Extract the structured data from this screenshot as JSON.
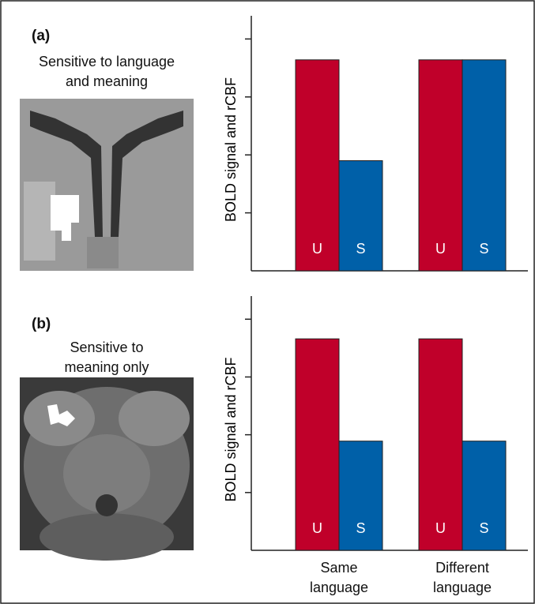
{
  "chart_data": [
    {
      "type": "bar",
      "panel_label": "(a)",
      "subtitle": "Sensitive to language and meaning",
      "ylabel": "BOLD signal and rCBF",
      "categories": [
        null,
        null
      ],
      "series": [
        {
          "name": "U",
          "color": "#c0002a",
          "values": [
            3.64,
            3.64
          ]
        },
        {
          "name": "S",
          "color": "#0060a8",
          "values": [
            1.9,
            3.64
          ]
        }
      ],
      "ylim": [
        0,
        4.4
      ],
      "yticks": [
        1,
        2,
        3,
        4
      ]
    },
    {
      "type": "bar",
      "panel_label": "(b)",
      "subtitle": "Sensitive to meaning only",
      "ylabel": "BOLD signal and rCBF",
      "categories": [
        "Same language",
        "Different language"
      ],
      "series": [
        {
          "name": "U",
          "color": "#c0002a",
          "values": [
            3.66,
            3.66
          ]
        },
        {
          "name": "S",
          "color": "#0060a8",
          "values": [
            1.89,
            1.89
          ]
        }
      ],
      "ylim": [
        0,
        4.4
      ],
      "yticks": [
        1,
        2,
        3,
        4
      ]
    }
  ]
}
